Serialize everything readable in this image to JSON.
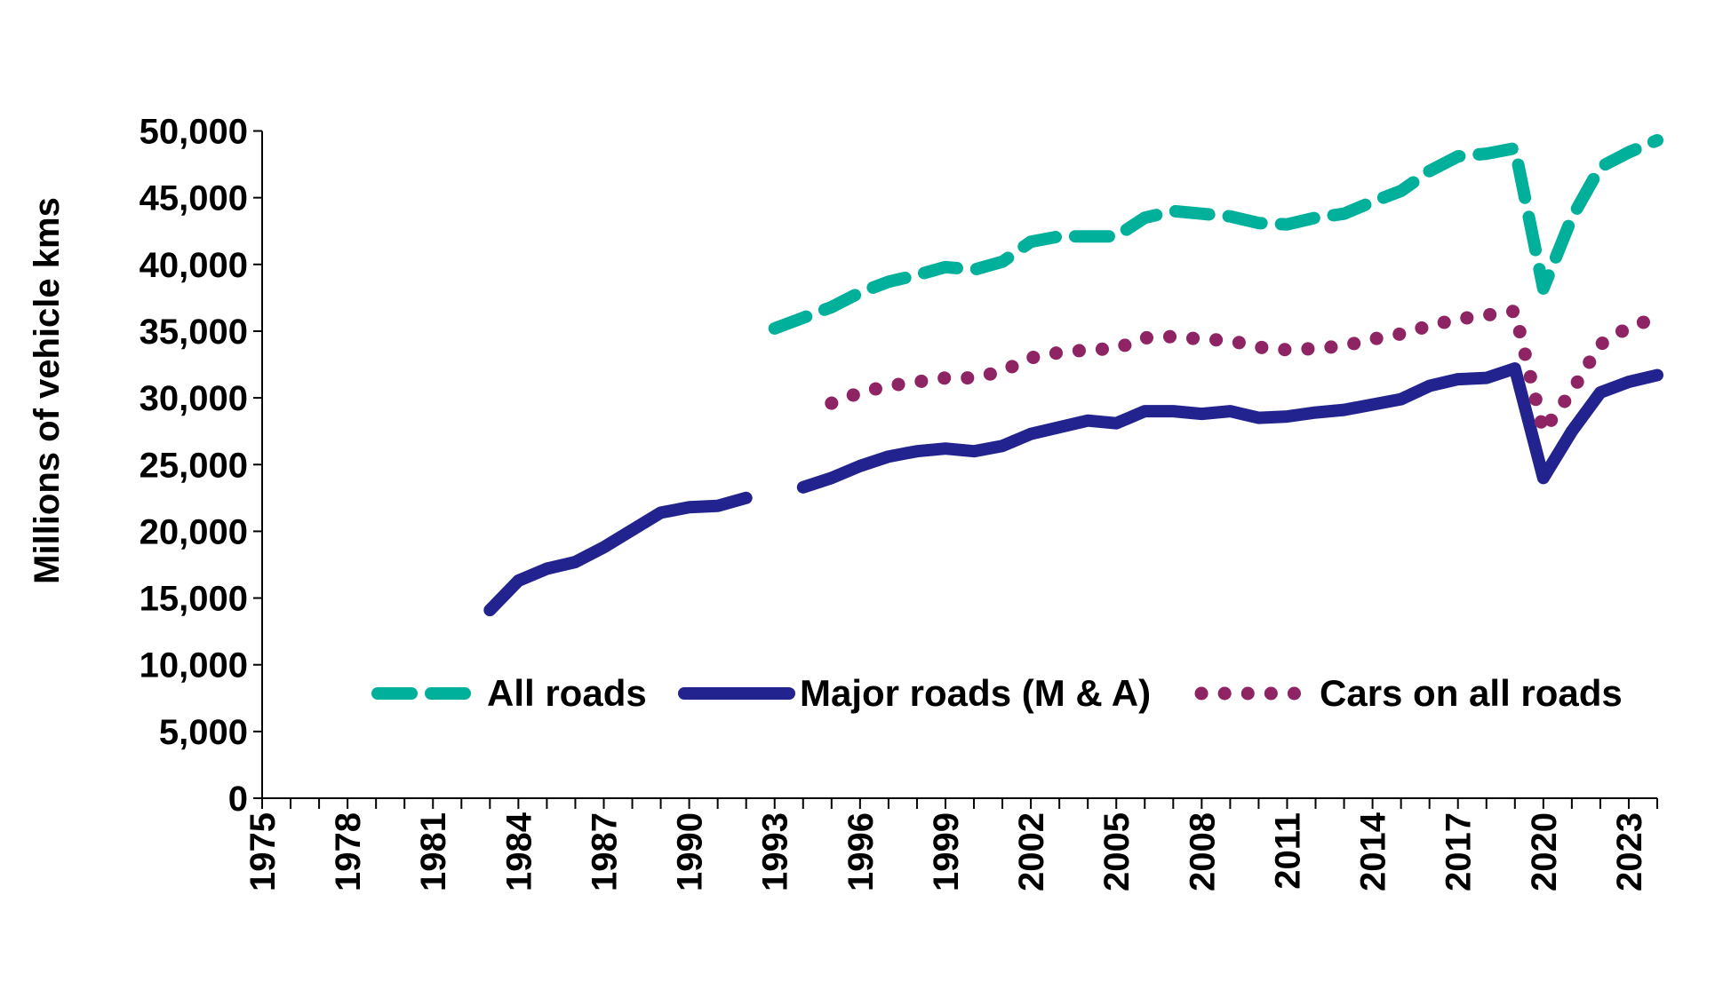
{
  "chart_data": {
    "type": "line",
    "title": "",
    "xlabel": "",
    "ylabel": "Millions of vehicle kms",
    "ylim": [
      0,
      50000
    ],
    "xlim": [
      1975,
      2024
    ],
    "yticks": [
      0,
      5000,
      10000,
      15000,
      20000,
      25000,
      30000,
      35000,
      40000,
      45000,
      50000
    ],
    "ytick_labels": [
      "0",
      "5,000",
      "10,000",
      "15,000",
      "20,000",
      "25,000",
      "30,000",
      "35,000",
      "40,000",
      "45,000",
      "50,000"
    ],
    "xtick_labels": [
      "1975",
      "1978",
      "1981",
      "1984",
      "1987",
      "1990",
      "1993",
      "1996",
      "1999",
      "2002",
      "2005",
      "2008",
      "2011",
      "2014",
      "2017",
      "2020",
      "2023"
    ],
    "grid": false,
    "legend_placement": "bottom-right inside",
    "series": [
      {
        "name": "All roads",
        "color": "#00B09B",
        "style": "dashed",
        "x": [
          1993,
          1994,
          1995,
          1996,
          1997,
          1998,
          1999,
          2000,
          2001,
          2002,
          2003,
          2004,
          2005,
          2006,
          2007,
          2008,
          2009,
          2010,
          2011,
          2012,
          2013,
          2014,
          2015,
          2016,
          2017,
          2018,
          2019,
          2020,
          2021,
          2022,
          2023,
          2024
        ],
        "values": [
          35200,
          36000,
          36800,
          37900,
          38700,
          39200,
          39800,
          39600,
          40200,
          41700,
          42100,
          42100,
          42100,
          43500,
          44000,
          43800,
          43600,
          43100,
          43000,
          43500,
          43800,
          44700,
          45500,
          47000,
          48100,
          48300,
          48700,
          38200,
          43500,
          47300,
          48400,
          49300
        ]
      },
      {
        "name": "Major roads (M & A)",
        "color": "#232390",
        "style": "solid",
        "x": [
          1983,
          1984,
          1985,
          1986,
          1987,
          1988,
          1989,
          1990,
          1991,
          1992,
          1993,
          1994,
          1995,
          1996,
          1997,
          1998,
          1999,
          2000,
          2001,
          2002,
          2003,
          2004,
          2005,
          2006,
          2007,
          2008,
          2009,
          2010,
          2011,
          2012,
          2013,
          2014,
          2015,
          2016,
          2017,
          2018,
          2019,
          2020,
          2021,
          2022,
          2023,
          2024
        ],
        "values": [
          14100,
          16300,
          17200,
          17700,
          18800,
          20100,
          21400,
          21800,
          21900,
          22500,
          null,
          23300,
          24000,
          24900,
          25600,
          26000,
          26200,
          26000,
          26400,
          27300,
          27800,
          28300,
          28100,
          29000,
          29000,
          28800,
          29000,
          28500,
          28600,
          28900,
          29100,
          29500,
          29900,
          30900,
          31400,
          31500,
          32200,
          24000,
          27500,
          30400,
          31200,
          31700
        ]
      },
      {
        "name": "Cars on all roads",
        "color": "#8E2464",
        "style": "dotted",
        "x": [
          1995,
          1996,
          1997,
          1998,
          1999,
          2000,
          2001,
          2002,
          2003,
          2004,
          2005,
          2006,
          2007,
          2008,
          2009,
          2010,
          2011,
          2012,
          2013,
          2014,
          2015,
          2016,
          2017,
          2018,
          2019,
          2020,
          2021,
          2022,
          2023,
          2024
        ],
        "values": [
          29600,
          30400,
          30900,
          31200,
          31500,
          31500,
          32000,
          33000,
          33400,
          33600,
          33700,
          34500,
          34600,
          34400,
          34300,
          33800,
          33600,
          33700,
          33900,
          34400,
          34800,
          35400,
          35900,
          36200,
          36500,
          27500,
          30500,
          34000,
          35300,
          36000
        ]
      }
    ]
  }
}
